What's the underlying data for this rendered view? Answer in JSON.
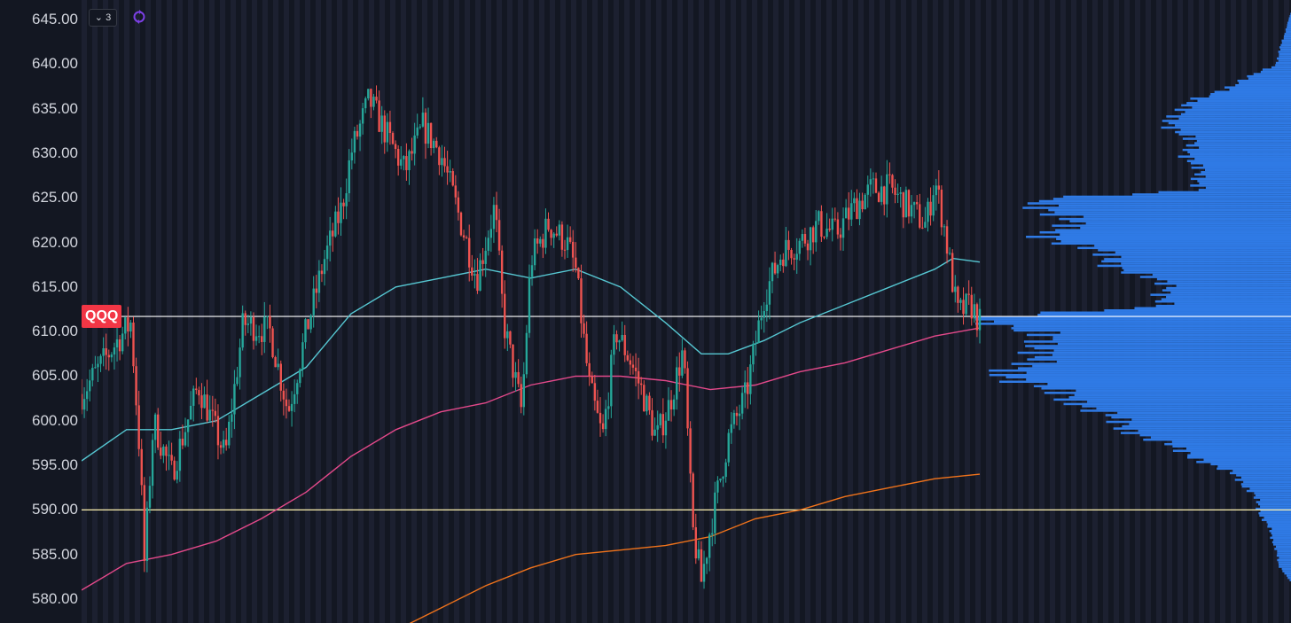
{
  "symbol": "QQQ",
  "toolbar": {
    "indicators_count": "3",
    "collapse_glyph": "⌄"
  },
  "colors": {
    "background": "#131722",
    "stripe": "#1c2030",
    "up": "#26a69a",
    "down": "#ef5350",
    "ma_fast": "#56c7d2",
    "ma_mid": "#e3498a",
    "ma_slow": "#f0731b",
    "volume_profile": "#2f7ae5",
    "hline": "#ffffff",
    "hline_support": "#fff3b0",
    "badge": "#f23645"
  },
  "chart_data": {
    "type": "candlestick",
    "ylim": [
      579,
      646
    ],
    "y_ticks": [
      "645.00",
      "640.00",
      "635.00",
      "630.00",
      "625.00",
      "620.00",
      "615.00",
      "610.00",
      "605.00",
      "600.00",
      "595.00",
      "590.00",
      "585.00",
      "580.00"
    ],
    "horizontal_levels": [
      611.7,
      590.0
    ],
    "price_path": [
      [
        0,
        603
      ],
      [
        0.02,
        606
      ],
      [
        0.04,
        609
      ],
      [
        0.055,
        611
      ],
      [
        0.065,
        596
      ],
      [
        0.07,
        584
      ],
      [
        0.08,
        600
      ],
      [
        0.1,
        594
      ],
      [
        0.13,
        604
      ],
      [
        0.16,
        596
      ],
      [
        0.18,
        611
      ],
      [
        0.21,
        610
      ],
      [
        0.23,
        601
      ],
      [
        0.25,
        610
      ],
      [
        0.27,
        618
      ],
      [
        0.29,
        624
      ],
      [
        0.3,
        630
      ],
      [
        0.32,
        636
      ],
      [
        0.34,
        632
      ],
      [
        0.36,
        628
      ],
      [
        0.38,
        633
      ],
      [
        0.4,
        630
      ],
      [
        0.42,
        623
      ],
      [
        0.44,
        616
      ],
      [
        0.46,
        624
      ],
      [
        0.47,
        611
      ],
      [
        0.49,
        601
      ],
      [
        0.5,
        618
      ],
      [
        0.52,
        622
      ],
      [
        0.54,
        620
      ],
      [
        0.55,
        617
      ],
      [
        0.565,
        604
      ],
      [
        0.58,
        598
      ],
      [
        0.595,
        610
      ],
      [
        0.61,
        607
      ],
      [
        0.625,
        603
      ],
      [
        0.64,
        598
      ],
      [
        0.655,
        602
      ],
      [
        0.67,
        608
      ],
      [
        0.68,
        588
      ],
      [
        0.69,
        582
      ],
      [
        0.7,
        588
      ],
      [
        0.72,
        598
      ],
      [
        0.74,
        603
      ],
      [
        0.76,
        614
      ],
      [
        0.78,
        619
      ],
      [
        0.8,
        620
      ],
      [
        0.82,
        622
      ],
      [
        0.84,
        621
      ],
      [
        0.86,
        624
      ],
      [
        0.88,
        626
      ],
      [
        0.9,
        626
      ],
      [
        0.92,
        624
      ],
      [
        0.94,
        622
      ],
      [
        0.95,
        627
      ],
      [
        0.96,
        622
      ],
      [
        0.975,
        612
      ],
      [
        0.99,
        613
      ],
      [
        1.0,
        611
      ]
    ],
    "series": [
      {
        "name": "",
        "points": [
          [
            0,
            595.5
          ],
          [
            0.05,
            599
          ],
          [
            0.1,
            599
          ],
          [
            0.15,
            600
          ],
          [
            0.2,
            603
          ],
          [
            0.25,
            606
          ],
          [
            0.3,
            612
          ],
          [
            0.35,
            615
          ],
          [
            0.4,
            616
          ],
          [
            0.45,
            617
          ],
          [
            0.5,
            616
          ],
          [
            0.55,
            617
          ],
          [
            0.6,
            615
          ],
          [
            0.65,
            611
          ],
          [
            0.69,
            607.5
          ],
          [
            0.72,
            607.5
          ],
          [
            0.76,
            609
          ],
          [
            0.8,
            611
          ],
          [
            0.85,
            613
          ],
          [
            0.9,
            615
          ],
          [
            0.95,
            617
          ],
          [
            0.97,
            618.2
          ],
          [
            1.0,
            617.8
          ]
        ]
      },
      {
        "name": "",
        "points": [
          [
            0,
            581
          ],
          [
            0.05,
            584
          ],
          [
            0.1,
            585
          ],
          [
            0.15,
            586.5
          ],
          [
            0.2,
            589
          ],
          [
            0.25,
            592
          ],
          [
            0.3,
            596
          ],
          [
            0.35,
            599
          ],
          [
            0.4,
            601
          ],
          [
            0.45,
            602
          ],
          [
            0.5,
            604
          ],
          [
            0.55,
            605
          ],
          [
            0.6,
            605
          ],
          [
            0.65,
            604.5
          ],
          [
            0.7,
            603.5
          ],
          [
            0.75,
            604
          ],
          [
            0.8,
            605.5
          ],
          [
            0.85,
            606.5
          ],
          [
            0.9,
            608
          ],
          [
            0.95,
            609.5
          ],
          [
            1.0,
            610.4
          ]
        ]
      },
      {
        "name": "",
        "points": [
          [
            0.36,
            577
          ],
          [
            0.4,
            579
          ],
          [
            0.45,
            581.5
          ],
          [
            0.5,
            583.5
          ],
          [
            0.55,
            585
          ],
          [
            0.6,
            585.5
          ],
          [
            0.65,
            586
          ],
          [
            0.7,
            587
          ],
          [
            0.75,
            589
          ],
          [
            0.8,
            590
          ],
          [
            0.85,
            591.5
          ],
          [
            0.9,
            592.5
          ],
          [
            0.95,
            593.5
          ],
          [
            1.0,
            594
          ]
        ]
      }
    ],
    "volume_profile": [
      [
        646,
        0
      ],
      [
        640,
        0.05
      ],
      [
        636,
        0.3
      ],
      [
        634,
        0.4
      ],
      [
        632,
        0.33
      ],
      [
        630,
        0.32
      ],
      [
        628,
        0.3
      ],
      [
        626,
        0.28
      ],
      [
        625,
        0.84
      ],
      [
        623,
        0.7
      ],
      [
        621,
        0.77
      ],
      [
        619,
        0.62
      ],
      [
        617,
        0.52
      ],
      [
        615,
        0.38
      ],
      [
        613,
        0.42
      ],
      [
        611.7,
        1.0
      ],
      [
        610,
        0.83
      ],
      [
        608,
        0.76
      ],
      [
        606,
        0.9
      ],
      [
        604,
        0.82
      ],
      [
        602,
        0.65
      ],
      [
        600,
        0.56
      ],
      [
        598,
        0.44
      ],
      [
        596,
        0.3
      ],
      [
        594,
        0.18
      ],
      [
        592,
        0.12
      ],
      [
        590,
        0.1
      ],
      [
        588,
        0.07
      ],
      [
        586,
        0.05
      ],
      [
        584,
        0.04
      ],
      [
        582,
        0.0
      ],
      [
        579,
        0.0
      ]
    ]
  }
}
